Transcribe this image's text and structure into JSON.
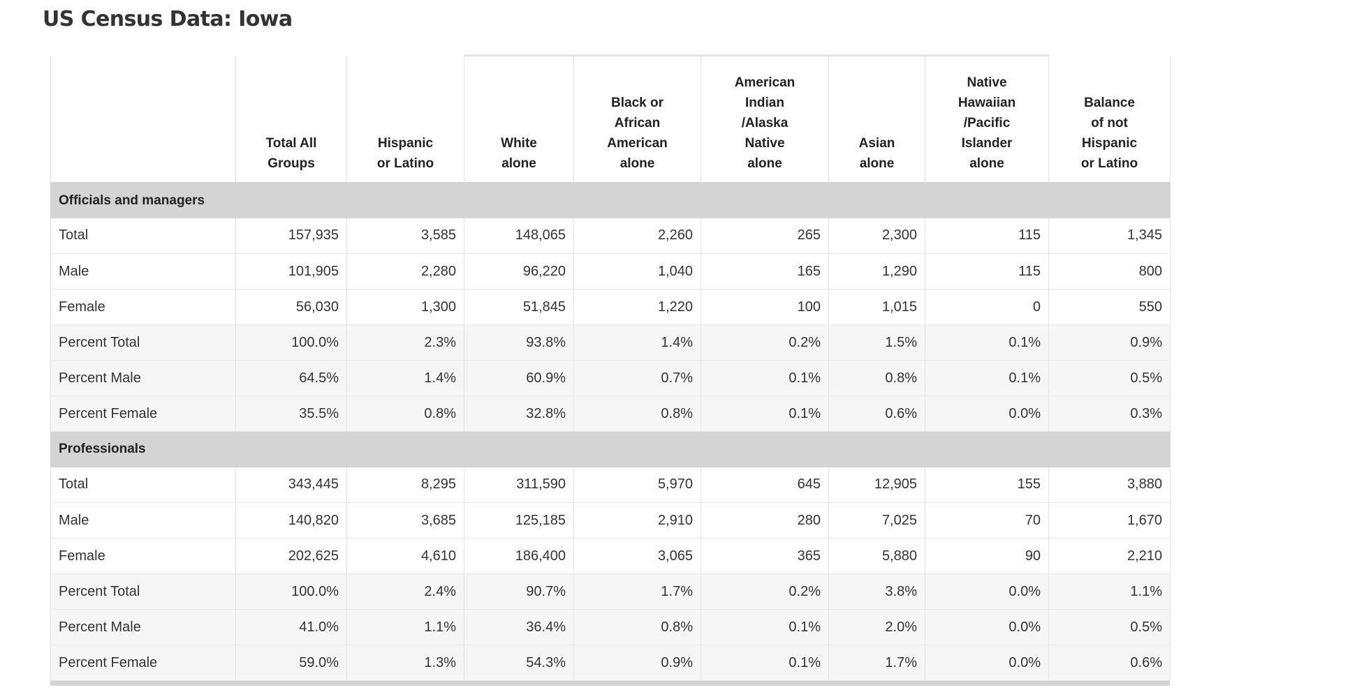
{
  "page": {
    "title": "US Census Data: Iowa"
  },
  "table": {
    "columns": [
      "",
      "Total All Groups",
      "Hispanic or Latino",
      "White alone",
      "Black or African American alone",
      "American Indian /Alaska Native alone",
      "Asian alone",
      "Native Hawaiian /Pacific Islander alone",
      "Balance of not Hispanic or Latino"
    ],
    "column_lines": [
      [],
      [
        "Total All",
        "Groups"
      ],
      [
        "Hispanic",
        "or Latino"
      ],
      [
        "White",
        "alone"
      ],
      [
        "Black or",
        "African",
        "American",
        "alone"
      ],
      [
        "American",
        "Indian",
        "/Alaska",
        "Native",
        "alone"
      ],
      [
        "Asian",
        "alone"
      ],
      [
        "Native",
        "Hawaiian",
        "/Pacific",
        "Islander",
        "alone"
      ],
      [
        "Balance",
        "of not",
        "Hispanic",
        "or Latino"
      ]
    ],
    "sections": [
      {
        "name": "Officials and managers",
        "rows": [
          {
            "label": "Total",
            "values": [
              "157,935",
              "3,585",
              "148,065",
              "2,260",
              "265",
              "2,300",
              "115",
              "1,345"
            ]
          },
          {
            "label": "Male",
            "values": [
              "101,905",
              "2,280",
              "96,220",
              "1,040",
              "165",
              "1,290",
              "115",
              "800"
            ]
          },
          {
            "label": "Female",
            "values": [
              "56,030",
              "1,300",
              "51,845",
              "1,220",
              "100",
              "1,015",
              "0",
              "550"
            ]
          },
          {
            "label": "Percent Total",
            "values": [
              "100.0%",
              "2.3%",
              "93.8%",
              "1.4%",
              "0.2%",
              "1.5%",
              "0.1%",
              "0.9%"
            ]
          },
          {
            "label": "Percent Male",
            "values": [
              "64.5%",
              "1.4%",
              "60.9%",
              "0.7%",
              "0.1%",
              "0.8%",
              "0.1%",
              "0.5%"
            ]
          },
          {
            "label": "Percent Female",
            "values": [
              "35.5%",
              "0.8%",
              "32.8%",
              "0.8%",
              "0.1%",
              "0.6%",
              "0.0%",
              "0.3%"
            ]
          }
        ]
      },
      {
        "name": "Professionals",
        "rows": [
          {
            "label": "Total",
            "values": [
              "343,445",
              "8,295",
              "311,590",
              "5,970",
              "645",
              "12,905",
              "155",
              "3,880"
            ]
          },
          {
            "label": "Male",
            "values": [
              "140,820",
              "3,685",
              "125,185",
              "2,910",
              "280",
              "7,025",
              "70",
              "1,670"
            ]
          },
          {
            "label": "Female",
            "values": [
              "202,625",
              "4,610",
              "186,400",
              "3,065",
              "365",
              "5,880",
              "90",
              "2,210"
            ]
          },
          {
            "label": "Percent Total",
            "values": [
              "100.0%",
              "2.4%",
              "90.7%",
              "1.7%",
              "0.2%",
              "3.8%",
              "0.0%",
              "1.1%"
            ]
          },
          {
            "label": "Percent Male",
            "values": [
              "41.0%",
              "1.1%",
              "36.4%",
              "0.8%",
              "0.1%",
              "2.0%",
              "0.0%",
              "0.5%"
            ]
          },
          {
            "label": "Percent Female",
            "values": [
              "59.0%",
              "1.3%",
              "54.3%",
              "0.9%",
              "0.1%",
              "1.7%",
              "0.0%",
              "0.6%"
            ]
          }
        ]
      }
    ]
  }
}
